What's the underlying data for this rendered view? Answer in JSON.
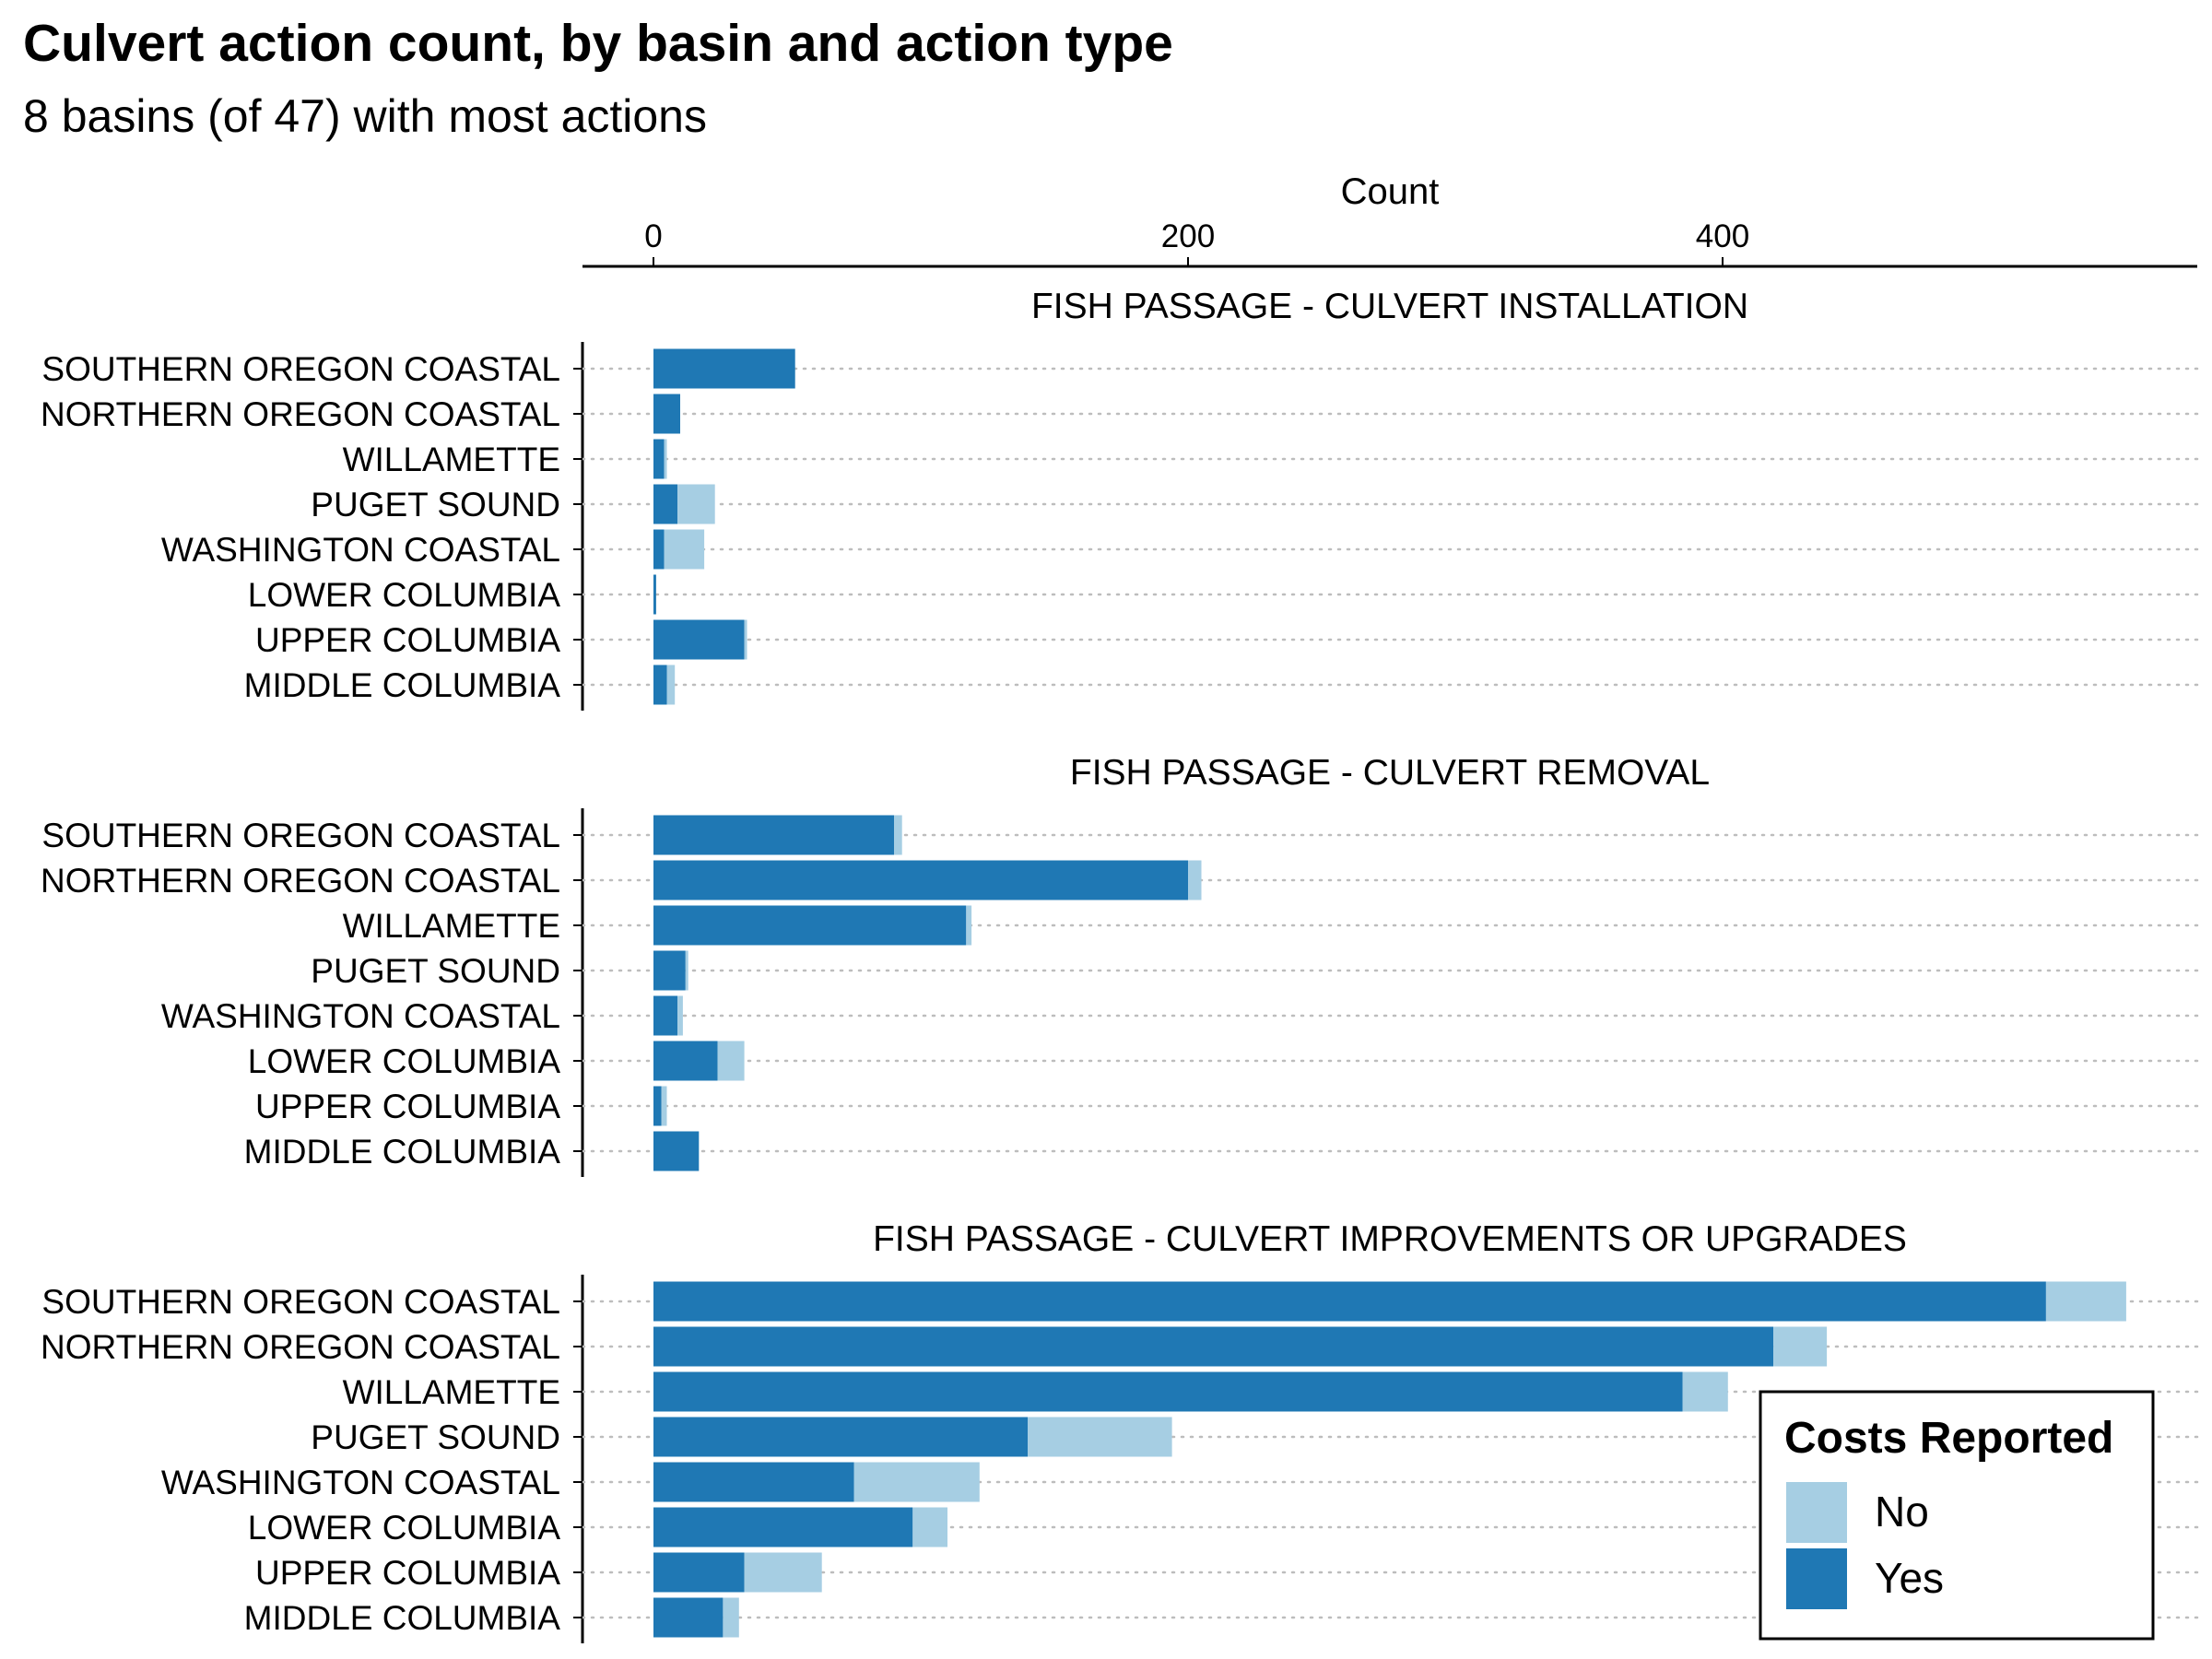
{
  "chart_data": {
    "type": "bar",
    "orientation": "horizontal",
    "stacked": true,
    "title": "Culvert action count, by basin and action type",
    "subtitle": "8 basins (of 47) with most actions",
    "xlabel": "Count",
    "xaxis_position": "top",
    "xticks": [
      0,
      200,
      400
    ],
    "xlim": [
      -27,
      578
    ],
    "grid": "horizontal dotted",
    "categories": [
      "SOUTHERN OREGON COASTAL",
      "NORTHERN OREGON COASTAL",
      "WILLAMETTE",
      "PUGET SOUND",
      "WASHINGTON COASTAL",
      "LOWER COLUMBIA",
      "UPPER COLUMBIA",
      "MIDDLE COLUMBIA"
    ],
    "legend": {
      "title": "Costs Reported",
      "position": "bottom-right",
      "entries": [
        {
          "label": "No",
          "color": "#a6cee3"
        },
        {
          "label": "Yes",
          "color": "#1f78b4"
        }
      ]
    },
    "facets": [
      {
        "title": "FISH PASSAGE - CULVERT INSTALLATION",
        "series": [
          {
            "name": "Yes",
            "values": [
              53,
              10,
              4,
              9,
              4,
              1,
              34,
              5
            ]
          },
          {
            "name": "No",
            "values": [
              0,
              0,
              1,
              14,
              15,
              0,
              1,
              3
            ]
          }
        ]
      },
      {
        "title": "FISH PASSAGE - CULVERT REMOVAL",
        "series": [
          {
            "name": "Yes",
            "values": [
              90,
              200,
              117,
              12,
              9,
              24,
              3,
              17
            ]
          },
          {
            "name": "No",
            "values": [
              3,
              5,
              2,
              1,
              2,
              10,
              2,
              0
            ]
          }
        ]
      },
      {
        "title": "FISH PASSAGE - CULVERT IMPROVEMENTS OR UPGRADES",
        "series": [
          {
            "name": "Yes",
            "values": [
              521,
              419,
              385,
              140,
              75,
              97,
              34,
              26
            ]
          },
          {
            "name": "No",
            "values": [
              30,
              20,
              17,
              54,
              47,
              13,
              29,
              6
            ]
          }
        ]
      }
    ]
  }
}
